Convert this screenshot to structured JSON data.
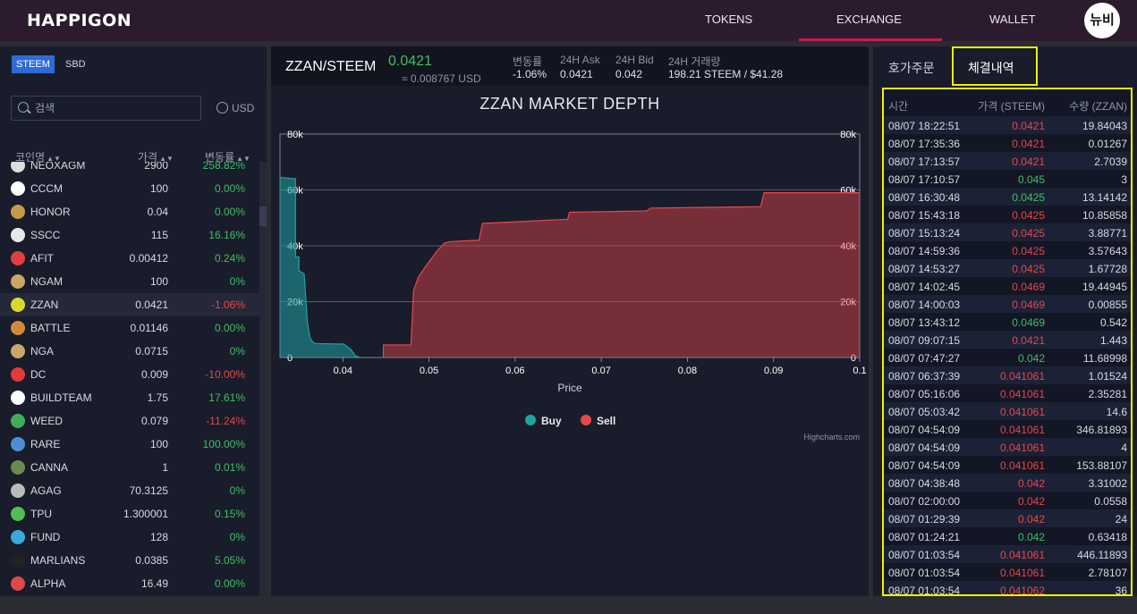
{
  "header": {
    "logo": "HAPPIGON",
    "nav": [
      "TOKENS",
      "EXCHANGE",
      "WALLET"
    ],
    "avatar_text": "뉴비"
  },
  "sidebar": {
    "tabs": [
      "STEEM",
      "SBD"
    ],
    "search_placeholder": "검색",
    "currency": "USD",
    "columns": [
      "코인명",
      "가격",
      "변동률"
    ],
    "coins": [
      {
        "name": "NEOXAGM",
        "price": "2900",
        "change": "258.82%",
        "dir": "pos",
        "color": "#dddddd"
      },
      {
        "name": "CCCM",
        "price": "100",
        "change": "0.00%",
        "dir": "pos",
        "color": "#ffffff"
      },
      {
        "name": "HONOR",
        "price": "0.04",
        "change": "0.00%",
        "dir": "pos",
        "color": "#c79a4b"
      },
      {
        "name": "SSCC",
        "price": "115",
        "change": "16.16%",
        "dir": "pos",
        "color": "#e8e8e8"
      },
      {
        "name": "AFIT",
        "price": "0.00412",
        "change": "0.24%",
        "dir": "pos",
        "color": "#e04040"
      },
      {
        "name": "NGAM",
        "price": "100",
        "change": "0%",
        "dir": "pos",
        "color": "#c9a865"
      },
      {
        "name": "ZZAN",
        "price": "0.0421",
        "change": "-1.06%",
        "dir": "neg",
        "color": "#d7d92f"
      },
      {
        "name": "BATTLE",
        "price": "0.01146",
        "change": "0.00%",
        "dir": "pos",
        "color": "#d08a3a"
      },
      {
        "name": "NGA",
        "price": "0.0715",
        "change": "0%",
        "dir": "pos",
        "color": "#c9a865"
      },
      {
        "name": "DC",
        "price": "0.009",
        "change": "-10.00%",
        "dir": "neg",
        "color": "#e03a3a"
      },
      {
        "name": "BUILDTEAM",
        "price": "1.75",
        "change": "17.61%",
        "dir": "pos",
        "color": "#ffffff"
      },
      {
        "name": "WEED",
        "price": "0.079",
        "change": "-11.24%",
        "dir": "neg",
        "color": "#3fae5b"
      },
      {
        "name": "RARE",
        "price": "100",
        "change": "100.00%",
        "dir": "pos",
        "color": "#4d8fd6"
      },
      {
        "name": "CANNA",
        "price": "1",
        "change": "0.01%",
        "dir": "pos",
        "color": "#6b8a4e"
      },
      {
        "name": "AGAG",
        "price": "70.3125",
        "change": "0%",
        "dir": "pos",
        "color": "#bbbbbb"
      },
      {
        "name": "TPU",
        "price": "1.300001",
        "change": "0.15%",
        "dir": "pos",
        "color": "#4fbf4f"
      },
      {
        "name": "FUND",
        "price": "128",
        "change": "0%",
        "dir": "pos",
        "color": "#3aa8d8"
      },
      {
        "name": "MARLIANS",
        "price": "0.0385",
        "change": "5.05%",
        "dir": "pos",
        "color": "#222222"
      },
      {
        "name": "ALPHA",
        "price": "16.49",
        "change": "0.00%",
        "dir": "pos",
        "color": "#e04848"
      }
    ]
  },
  "market": {
    "pair": "ZZAN/STEEM",
    "last_price": "0.0421",
    "last_usd": "≈ 0.008767 USD",
    "stats": [
      {
        "label": "변동률",
        "value": "-1.06%"
      },
      {
        "label": "24H Ask",
        "value": "0.0421"
      },
      {
        "label": "24H Bid",
        "value": "0.042"
      },
      {
        "label": "24H 거래량",
        "value": "198.21 STEEM / $41.28"
      }
    ]
  },
  "chart_data": {
    "type": "area",
    "title": "ZZAN MARKET DEPTH",
    "xlabel": "Price",
    "ylabel": "",
    "xlim": [
      0.0327,
      0.1
    ],
    "ylim": [
      0,
      80000
    ],
    "x_ticks": [
      "0.04",
      "0.05",
      "0.06",
      "0.07",
      "0.08",
      "0.09",
      "0.1"
    ],
    "y_ticks": [
      "0",
      "20k",
      "40k",
      "60k",
      "80k"
    ],
    "legend": "bottom",
    "credit": "Highcharts.com",
    "series": [
      {
        "name": "Buy",
        "color": "#1fa3a3",
        "points": [
          [
            0.0327,
            64500
          ],
          [
            0.0345,
            64000
          ],
          [
            0.0345,
            36000
          ],
          [
            0.0349,
            36000
          ],
          [
            0.0349,
            31000
          ],
          [
            0.0355,
            30000
          ],
          [
            0.0359,
            12000
          ],
          [
            0.0362,
            7000
          ],
          [
            0.0365,
            5500
          ],
          [
            0.0368,
            5000
          ],
          [
            0.0401,
            4800
          ],
          [
            0.0409,
            3000
          ],
          [
            0.0415,
            500
          ],
          [
            0.042,
            0
          ]
        ]
      },
      {
        "name": "Sell",
        "color": "#e8464c",
        "points": [
          [
            0.0447,
            0
          ],
          [
            0.0447,
            4500
          ],
          [
            0.0479,
            4500
          ],
          [
            0.0482,
            24000
          ],
          [
            0.0488,
            29000
          ],
          [
            0.0497,
            33000
          ],
          [
            0.0509,
            38000
          ],
          [
            0.0518,
            41000
          ],
          [
            0.0525,
            41500
          ],
          [
            0.0558,
            42000
          ],
          [
            0.0562,
            48000
          ],
          [
            0.0661,
            49500
          ],
          [
            0.0663,
            52000
          ],
          [
            0.0753,
            52500
          ],
          [
            0.0757,
            53500
          ],
          [
            0.0885,
            54000
          ],
          [
            0.0889,
            59000
          ],
          [
            0.1,
            59000
          ]
        ]
      }
    ]
  },
  "trades": {
    "tabs": [
      "호가주문",
      "체결내역"
    ],
    "columns": [
      "시간",
      "가격 (STEEM)",
      "수량 (ZZAN)"
    ],
    "rows": [
      {
        "time": "08/07 18:22:51",
        "price": "0.0421",
        "qty": "19.84043",
        "dir": "neg"
      },
      {
        "time": "08/07 17:35:36",
        "price": "0.0421",
        "qty": "0.01267",
        "dir": "neg"
      },
      {
        "time": "08/07 17:13:57",
        "price": "0.0421",
        "qty": "2.7039",
        "dir": "neg"
      },
      {
        "time": "08/07 17:10:57",
        "price": "0.045",
        "qty": "3",
        "dir": "pos"
      },
      {
        "time": "08/07 16:30:48",
        "price": "0.0425",
        "qty": "13.14142",
        "dir": "pos"
      },
      {
        "time": "08/07 15:43:18",
        "price": "0.0425",
        "qty": "10.85858",
        "dir": "neg"
      },
      {
        "time": "08/07 15:13:24",
        "price": "0.0425",
        "qty": "3.88771",
        "dir": "neg"
      },
      {
        "time": "08/07 14:59:36",
        "price": "0.0425",
        "qty": "3.57643",
        "dir": "neg"
      },
      {
        "time": "08/07 14:53:27",
        "price": "0.0425",
        "qty": "1.67728",
        "dir": "neg"
      },
      {
        "time": "08/07 14:02:45",
        "price": "0.0469",
        "qty": "19.44945",
        "dir": "neg"
      },
      {
        "time": "08/07 14:00:03",
        "price": "0.0469",
        "qty": "0.00855",
        "dir": "neg"
      },
      {
        "time": "08/07 13:43:12",
        "price": "0.0469",
        "qty": "0.542",
        "dir": "pos"
      },
      {
        "time": "08/07 09:07:15",
        "price": "0.0421",
        "qty": "1.443",
        "dir": "neg"
      },
      {
        "time": "08/07 07:47:27",
        "price": "0.042",
        "qty": "11.68998",
        "dir": "pos"
      },
      {
        "time": "08/07 06:37:39",
        "price": "0.041061",
        "qty": "1.01524",
        "dir": "neg"
      },
      {
        "time": "08/07 05:16:06",
        "price": "0.041061",
        "qty": "2.35281",
        "dir": "neg"
      },
      {
        "time": "08/07 05:03:42",
        "price": "0.041061",
        "qty": "14.6",
        "dir": "neg"
      },
      {
        "time": "08/07 04:54:09",
        "price": "0.041061",
        "qty": "346.81893",
        "dir": "neg"
      },
      {
        "time": "08/07 04:54:09",
        "price": "0.041061",
        "qty": "4",
        "dir": "neg"
      },
      {
        "time": "08/07 04:54:09",
        "price": "0.041061",
        "qty": "153.88107",
        "dir": "neg"
      },
      {
        "time": "08/07 04:38:48",
        "price": "0.042",
        "qty": "3.31002",
        "dir": "neg"
      },
      {
        "time": "08/07 02:00:00",
        "price": "0.042",
        "qty": "0.0558",
        "dir": "neg"
      },
      {
        "time": "08/07 01:29:39",
        "price": "0.042",
        "qty": "24",
        "dir": "neg"
      },
      {
        "time": "08/07 01:24:21",
        "price": "0.042",
        "qty": "0.63418",
        "dir": "pos"
      },
      {
        "time": "08/07 01:03:54",
        "price": "0.041061",
        "qty": "446.11893",
        "dir": "neg"
      },
      {
        "time": "08/07 01:03:54",
        "price": "0.041061",
        "qty": "2.78107",
        "dir": "neg"
      },
      {
        "time": "08/07 01:03:54",
        "price": "0.041062",
        "qty": "36",
        "dir": "neg"
      }
    ]
  }
}
